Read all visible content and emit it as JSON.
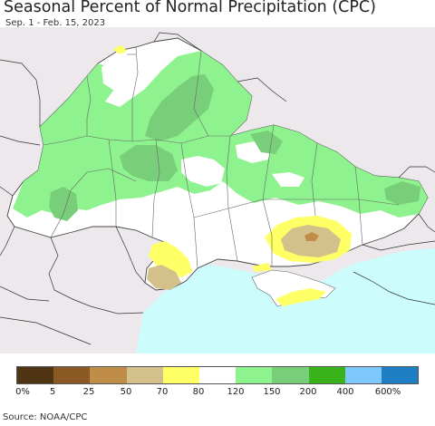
{
  "title": "Seasonal Percent of Normal Precipitation (CPC)",
  "subtitle": "Sep. 1 - Feb. 15, 2023",
  "source": "Source: NOAA/CPC",
  "legend": {
    "colors": [
      "#4f3513",
      "#8b5a24",
      "#c08d48",
      "#d4c08a",
      "#ffff66",
      "#ffffff",
      "#8ef28e",
      "#79cf79",
      "#3ab31a",
      "#7ec8ff",
      "#1f7fc4"
    ],
    "labels": [
      "0%",
      "5",
      "25",
      "50",
      "70",
      "80",
      "120",
      "150",
      "200",
      "400",
      "600%"
    ]
  },
  "map_colors": {
    "sea": "#ccfcfc",
    "outside_land": "#ece8ec",
    "light_green": "#8ef28e",
    "mid_green": "#79cf79",
    "normal": "#ffffff",
    "yellow": "#ffff66",
    "tan": "#d4c08a",
    "light_brown": "#c08d48"
  }
}
